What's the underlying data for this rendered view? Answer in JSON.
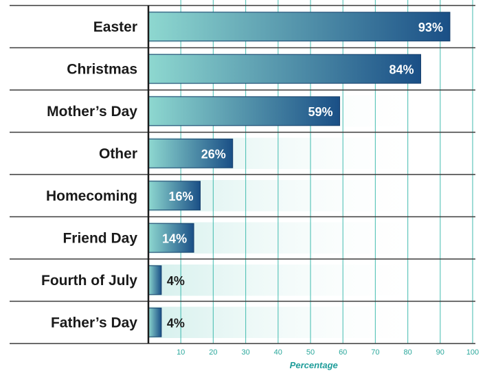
{
  "chart_data": {
    "type": "bar",
    "orientation": "horizontal",
    "categories": [
      "Easter",
      "Christmas",
      "Mother’s Day",
      "Other",
      "Homecoming",
      "Friend Day",
      "Fourth of July",
      "Father’s Day"
    ],
    "values": [
      93,
      84,
      59,
      26,
      16,
      14,
      4,
      4
    ],
    "value_labels": [
      "93%",
      "84%",
      "59%",
      "26%",
      "16%",
      "14%",
      "4%",
      "4%"
    ],
    "xlim": [
      0,
      100
    ],
    "x_ticks": [
      10,
      20,
      30,
      40,
      50,
      60,
      70,
      80,
      90,
      100
    ],
    "xlabel": "Percentage",
    "grid": "vertical",
    "colors": {
      "bar_start": "#8ed8d0",
      "bar_end": "#1a4f86",
      "grid": "#2bb3a6",
      "tick_text": "#2ba89c",
      "axis_title": "#1f9d9a",
      "row_line": "#3a3a3a",
      "axis_line": "#1a1a1a",
      "label_light": "#ffffff",
      "label_dark": "#1a1a1a"
    }
  }
}
